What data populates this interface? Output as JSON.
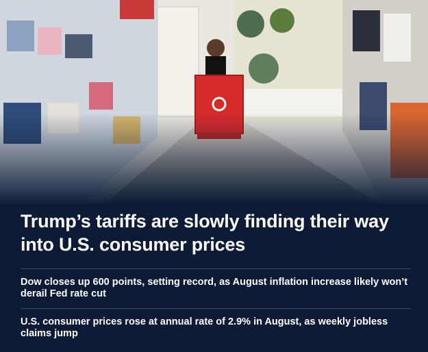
{
  "headline": "Trump’s tariffs are slowly finding their way into U.S. consumer prices",
  "related": [
    "Dow closes up 600 points, setting record, as August inflation increase likely won’t derail Fed rate cut",
    "U.S. consumer prices rose at annual rate of 2.9% in August, as weekly jobless claims jump"
  ]
}
